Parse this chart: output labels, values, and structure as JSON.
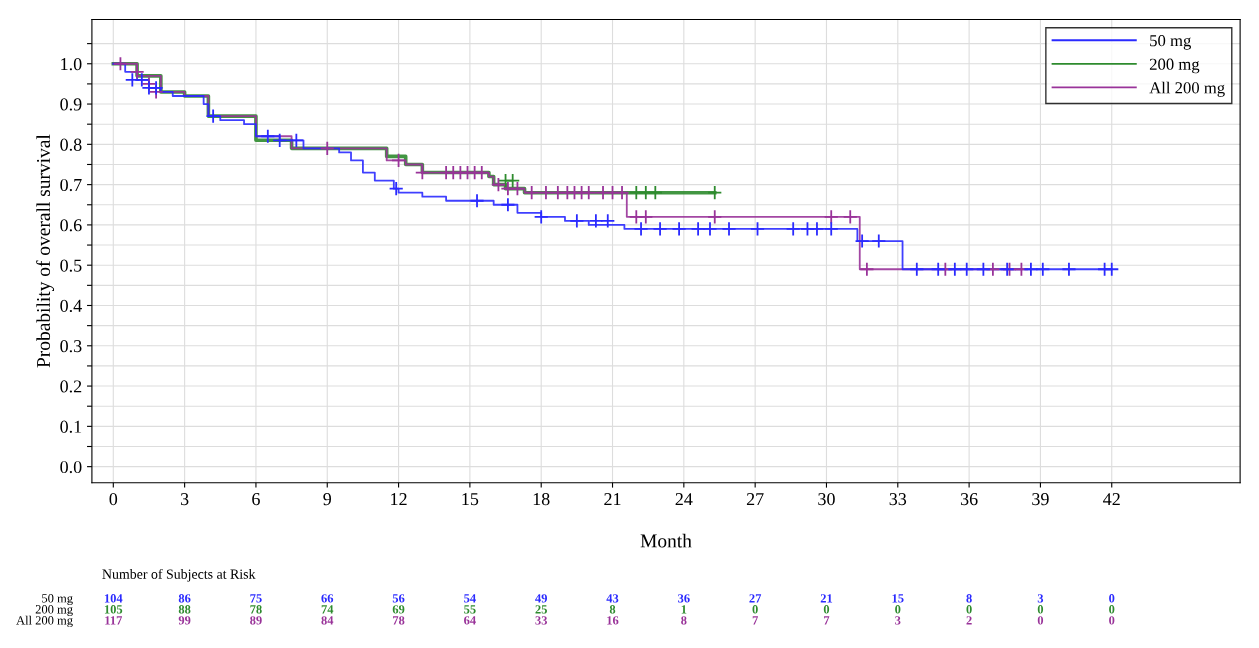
{
  "chart_data": {
    "type": "step",
    "xlabel": "Month",
    "ylabel": "Probability of overall survival",
    "xlim": [
      -0.9,
      47.4
    ],
    "xticks": [
      0,
      3,
      6,
      9,
      12,
      15,
      18,
      21,
      24,
      27,
      30,
      33,
      36,
      39,
      42
    ],
    "ylim": [
      -0.04,
      1.11
    ],
    "yticks": [
      {
        "value": 0,
        "label": "0.0"
      },
      {
        "value": 0.05,
        "label": null
      },
      0.1,
      {
        "value": 0.15,
        "label": null
      },
      0.2,
      {
        "value": 0.25,
        "label": null
      },
      0.3,
      {
        "value": 0.35,
        "label": null
      },
      0.4,
      {
        "value": 0.45,
        "label": null
      },
      0.5,
      {
        "value": 0.55,
        "label": null
      },
      0.6,
      {
        "value": 0.65,
        "label": null
      },
      0.7,
      {
        "value": 0.75,
        "label": null
      },
      0.8,
      {
        "value": 0.85,
        "label": null
      },
      0.9,
      {
        "value": 0.95,
        "label": null
      },
      {
        "value": 1,
        "label": "1.0"
      },
      {
        "value": 1.05,
        "label": null
      }
    ],
    "grid": true,
    "legend": "top right",
    "series": [
      {
        "name": "50 mg",
        "color": "#2a2aff",
        "x": [
          0,
          0.5,
          1,
          1.5,
          2,
          2.5,
          3.8,
          4,
          4.5,
          5.5,
          6,
          7,
          8,
          9.5,
          10,
          10.5,
          11,
          11.8,
          12,
          13,
          14,
          16,
          17,
          18,
          19,
          20,
          21.5,
          31.3,
          33.2,
          42
        ],
        "values": [
          1.0,
          0.98,
          0.96,
          0.94,
          0.93,
          0.92,
          0.9,
          0.87,
          0.86,
          0.85,
          0.82,
          0.81,
          0.79,
          0.78,
          0.76,
          0.73,
          0.71,
          0.69,
          0.68,
          0.67,
          0.66,
          0.65,
          0.63,
          0.62,
          0.61,
          0.6,
          0.59,
          0.56,
          0.49,
          0.49
        ]
      },
      {
        "name": "200 mg",
        "color": "#2e8b2e",
        "x": [
          0,
          1,
          2,
          3,
          4,
          6,
          7.5,
          11.5,
          12.3,
          13,
          15.8,
          16,
          16.5,
          17.3,
          25.3
        ],
        "values": [
          1.0,
          0.97,
          0.93,
          0.92,
          0.87,
          0.81,
          0.79,
          0.77,
          0.75,
          0.73,
          0.72,
          0.7,
          0.69,
          0.68,
          0.68
        ]
      },
      {
        "name": "All 200 mg",
        "color": "#993399",
        "x": [
          0,
          1,
          2,
          3,
          4,
          6,
          7.5,
          11.5,
          12.3,
          13,
          15.8,
          16,
          16.5,
          17.3,
          21.6,
          31.4,
          38.2
        ],
        "values": [
          1.0,
          0.97,
          0.93,
          0.92,
          0.87,
          0.82,
          0.79,
          0.76,
          0.75,
          0.73,
          0.72,
          0.7,
          0.69,
          0.68,
          0.62,
          0.49,
          0.49
        ]
      },
      {
        "type": "scatter",
        "marker": "cross",
        "color": "#2a2aff",
        "x": [
          0.8,
          1.2,
          1.5,
          1.8,
          4.2,
          6.5,
          7,
          7.7,
          11.9,
          15.3,
          16.6,
          18,
          19.5,
          20.3,
          20.8,
          22.2,
          23,
          23.8,
          24.6,
          25.1,
          25.9,
          27.1,
          28.6,
          29.2,
          29.6,
          30.2,
          31.5,
          32.2,
          33.8,
          34.7,
          35.4,
          35.9,
          36.6,
          37.6,
          38.6,
          39.1,
          40.2,
          41.7,
          42.0
        ],
        "values": [
          0.96,
          0.96,
          0.94,
          0.94,
          0.87,
          0.82,
          0.81,
          0.81,
          0.69,
          0.66,
          0.65,
          0.62,
          0.61,
          0.61,
          0.61,
          0.59,
          0.59,
          0.59,
          0.59,
          0.59,
          0.59,
          0.59,
          0.59,
          0.59,
          0.59,
          0.59,
          0.56,
          0.56,
          0.49,
          0.49,
          0.49,
          0.49,
          0.49,
          0.49,
          0.49,
          0.49,
          0.49,
          0.49,
          0.49
        ]
      },
      {
        "type": "scatter",
        "marker": "cross",
        "color": "#2e8b2e",
        "x": [
          16.5,
          16.8,
          22,
          22.4,
          22.8,
          25.3
        ],
        "values": [
          0.71,
          0.71,
          0.68,
          0.68,
          0.68,
          0.68
        ]
      },
      {
        "type": "scatter",
        "marker": "cross",
        "color": "#993399",
        "x": [
          0.3,
          1.0,
          1.5,
          1.8,
          9,
          12,
          13,
          14,
          14.3,
          14.6,
          14.9,
          15.2,
          15.5,
          16.2,
          16.6,
          17,
          17.6,
          18.2,
          18.7,
          19.1,
          19.4,
          19.7,
          20,
          20.6,
          21,
          21.4,
          22,
          22.4,
          25.3,
          30.2,
          31,
          31.7,
          35,
          37,
          37.7,
          38.2
        ],
        "values": [
          1.0,
          0.98,
          0.95,
          0.93,
          0.79,
          0.76,
          0.73,
          0.73,
          0.73,
          0.73,
          0.73,
          0.73,
          0.73,
          0.7,
          0.69,
          0.69,
          0.68,
          0.68,
          0.68,
          0.68,
          0.68,
          0.68,
          0.68,
          0.68,
          0.68,
          0.68,
          0.62,
          0.62,
          0.62,
          0.62,
          0.62,
          0.49,
          0.49,
          0.49,
          0.49,
          0.49
        ]
      }
    ],
    "annotations": [
      "Number of Subjects at Risk",
      "104 86 75 66 56 54 49 43 36 27 21 15 8 3 0",
      "105 88 78 74 69 55 25 8 1 0 0 0 0 0 0",
      "117 99 89 84 78 64 33 16 8 7 7 3 2 0 0"
    ]
  }
}
